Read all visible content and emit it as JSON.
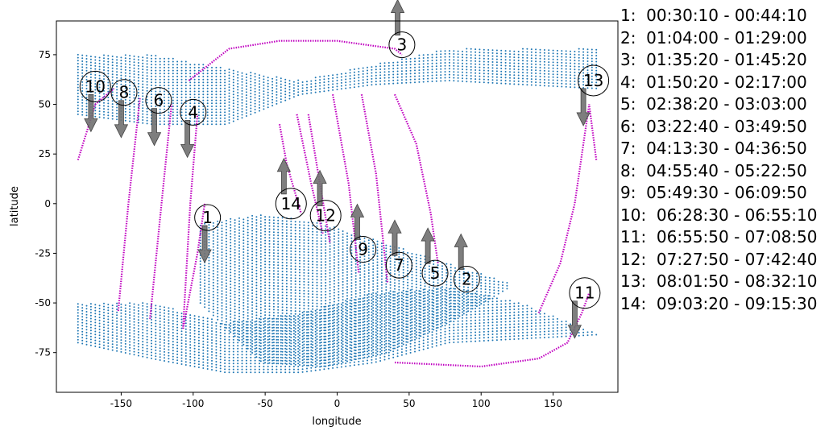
{
  "chart_data": {
    "type": "scatter",
    "xlabel": "longitude",
    "ylabel": "latitude",
    "xlim": [
      -195,
      195
    ],
    "ylim": [
      -95,
      92
    ],
    "xticks": [
      -150,
      -100,
      -50,
      0,
      50,
      100,
      150
    ],
    "yticks": [
      -75,
      -50,
      -25,
      0,
      25,
      50,
      75
    ],
    "grid": false,
    "land_color": "#1f77b4",
    "track_color": "#c000c0",
    "arrow_color": "#707070",
    "land_regions": [
      {
        "name": "northern-band",
        "lon": [
          -180,
          180
        ],
        "lat_top": [
          75,
          75,
          68,
          62,
          70,
          78,
          78,
          78
        ],
        "lat_bottom": [
          45,
          40,
          40,
          55,
          60,
          62,
          60,
          58
        ]
      },
      {
        "name": "southern-band",
        "lon": [
          -180,
          180
        ],
        "lat_top": [
          -50,
          -50,
          -60,
          -55,
          -45,
          -42,
          -50,
          -65
        ],
        "lat_bottom": [
          -70,
          -78,
          -85,
          -85,
          -80,
          -70,
          -68,
          -66
        ]
      },
      {
        "name": "central-wedge",
        "lon": [
          -95,
          120
        ],
        "lat_top": [
          -10,
          -5,
          -10,
          -20,
          -30,
          -40
        ],
        "lat_bottom": [
          -50,
          -80,
          -82,
          -75,
          -60,
          -42
        ]
      }
    ],
    "tracks": [
      {
        "id": 1,
        "lon": [
          -107,
          -97,
          -92
        ],
        "lat": [
          -63,
          -25,
          0
        ]
      },
      {
        "id": 2,
        "lon": [
          40,
          55,
          65,
          70
        ],
        "lat": [
          55,
          30,
          -5,
          -30
        ]
      },
      {
        "id": 3,
        "lon": [
          -103,
          -75,
          -40,
          0,
          40,
          45
        ],
        "lat": [
          62,
          78,
          82,
          82,
          78,
          75
        ]
      },
      {
        "id": 4,
        "lon": [
          -107,
          -102,
          -97
        ],
        "lat": [
          -62,
          0,
          45
        ]
      },
      {
        "id": 5,
        "lon": [
          17,
          27,
          35
        ],
        "lat": [
          55,
          15,
          -40
        ]
      },
      {
        "id": 6,
        "lon": [
          -130,
          -122,
          -115
        ],
        "lat": [
          -58,
          0,
          50
        ]
      },
      {
        "id": 7,
        "lon": [
          -3,
          8,
          15
        ],
        "lat": [
          55,
          10,
          -35
        ]
      },
      {
        "id": 8,
        "lon": [
          -152,
          -145,
          -137
        ],
        "lat": [
          -54,
          0,
          53
        ]
      },
      {
        "id": 9,
        "lon": [
          -20,
          -12,
          -5
        ],
        "lat": [
          45,
          10,
          -20
        ]
      },
      {
        "id": 10,
        "lon": [
          -180,
          -168,
          -155
        ],
        "lat": [
          22,
          50,
          58
        ]
      },
      {
        "id": 11,
        "lon": [
          40,
          100,
          140,
          160,
          170,
          175
        ],
        "lat": [
          -80,
          -82,
          -78,
          -70,
          -55,
          -45
        ]
      },
      {
        "id": 12,
        "lon": [
          -28,
          -18,
          -10
        ],
        "lat": [
          45,
          10,
          -15
        ]
      },
      {
        "id": 13,
        "lon": [
          140,
          155,
          165,
          175,
          180
        ],
        "lat": [
          -55,
          -30,
          0,
          50,
          22
        ]
      },
      {
        "id": 14,
        "lon": [
          -40,
          -35,
          -25
        ],
        "lat": [
          40,
          20,
          -5
        ]
      }
    ],
    "markers": [
      {
        "label": "1",
        "lon": -90,
        "lat": -7,
        "arrow": "down",
        "arrow_lon": -92
      },
      {
        "label": "2",
        "lon": 90,
        "lat": -38,
        "arrow": "up",
        "arrow_lon": 86
      },
      {
        "label": "3",
        "lon": 45,
        "lat": 80,
        "arrow": "up",
        "arrow_lon": 42
      },
      {
        "label": "4",
        "lon": -100,
        "lat": 46,
        "arrow": "down",
        "arrow_lon": -104
      },
      {
        "label": "5",
        "lon": 68,
        "lat": -35,
        "arrow": "up",
        "arrow_lon": 63
      },
      {
        "label": "6",
        "lon": -124,
        "lat": 52,
        "arrow": "down",
        "arrow_lon": -127
      },
      {
        "label": "7",
        "lon": 43,
        "lat": -31,
        "arrow": "up",
        "arrow_lon": 40
      },
      {
        "label": "8",
        "lon": -148,
        "lat": 56,
        "arrow": "down",
        "arrow_lon": -150
      },
      {
        "label": "9",
        "lon": 18,
        "lat": -23,
        "arrow": "up",
        "arrow_lon": 14
      },
      {
        "label": "10",
        "lon": -168,
        "lat": 59,
        "arrow": "down",
        "arrow_lon": -171
      },
      {
        "label": "11",
        "lon": 172,
        "lat": -45,
        "arrow": "down",
        "arrow_lon": 165
      },
      {
        "label": "12",
        "lon": -8,
        "lat": -6,
        "arrow": "up",
        "arrow_lon": -12
      },
      {
        "label": "13",
        "lon": 178,
        "lat": 62,
        "arrow": "down",
        "arrow_lon": 171
      },
      {
        "label": "14",
        "lon": -32,
        "lat": 0,
        "arrow": "up",
        "arrow_lon": -37
      }
    ]
  },
  "legend": [
    "1:  00:30:10 - 00:44:10",
    "2:  01:04:00 - 01:29:00",
    "3:  01:35:20 - 01:45:20",
    "4:  01:50:20 - 02:17:00",
    "5:  02:38:20 - 03:03:00",
    "6:  03:22:40 - 03:49:50",
    "7:  04:13:30 - 04:36:50",
    "8:  04:55:40 - 05:22:50",
    "9:  05:49:30 - 06:09:50",
    "10:  06:28:30 - 06:55:10",
    "11:  06:55:50 - 07:08:50",
    "12:  07:27:50 - 07:42:40",
    "13:  08:01:50 - 08:32:10",
    "14:  09:03:20 - 09:15:30"
  ]
}
